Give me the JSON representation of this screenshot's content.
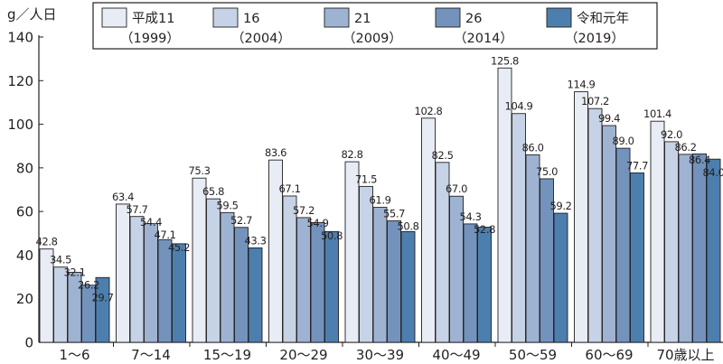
{
  "chart_data": {
    "type": "bar",
    "unit_label": "g／人日",
    "categories": [
      "1～6",
      "7～14",
      "15～19",
      "20～29",
      "30～39",
      "40～49",
      "50～59",
      "60～69",
      "70歳以上"
    ],
    "series": [
      {
        "name": "平成11",
        "year": "（1999）",
        "color": "#e8edf5",
        "values": [
          42.8,
          63.4,
          75.3,
          83.6,
          82.8,
          102.8,
          125.8,
          114.9,
          101.4
        ]
      },
      {
        "name": "16",
        "year": "（2004）",
        "color": "#c6d3e6",
        "values": [
          34.5,
          57.7,
          65.8,
          67.1,
          71.5,
          82.5,
          104.9,
          107.2,
          92.0
        ]
      },
      {
        "name": "21",
        "year": "（2009）",
        "color": "#9eb3d2",
        "values": [
          32.1,
          54.4,
          59.5,
          57.2,
          61.9,
          67.0,
          86.0,
          99.4,
          86.2
        ]
      },
      {
        "name": "26",
        "year": "（2014）",
        "color": "#7393bd",
        "values": [
          26.2,
          47.1,
          52.7,
          54.9,
          55.7,
          54.3,
          75.0,
          89.0,
          86.4
        ]
      },
      {
        "name": "令和元年",
        "year": "（2019）",
        "color": "#4c7fae",
        "values": [
          29.7,
          45.2,
          43.3,
          50.8,
          50.8,
          52.8,
          59.2,
          77.7,
          84.0
        ]
      }
    ],
    "data_labels": [
      [
        "42.8",
        "63.4",
        "75.3",
        "83.6",
        "82.8",
        "102.8",
        "125.8",
        "114.9",
        "101.4"
      ],
      [
        "34.5",
        "57.7",
        "65.8",
        "67.1",
        "71.5",
        "82.5",
        "104.9",
        "107.2",
        "92.0"
      ],
      [
        "32.1",
        "54.4",
        "59.5",
        "57.2",
        "61.9",
        "67.0",
        "86.0",
        "99.4",
        "86.2"
      ],
      [
        "26.2",
        "47.1",
        "52.7",
        "54.9",
        "55.7",
        "54.3",
        "75.0",
        "89.0",
        "86.4"
      ],
      [
        "29.7",
        "45.2",
        "43.3",
        "50.8",
        "50.8",
        "52.8",
        "59.2",
        "77.7",
        "84.0"
      ]
    ],
    "y_ticks": [
      "0",
      "20",
      "40",
      "60",
      "80",
      "100",
      "120",
      "140"
    ],
    "ylim": [
      0,
      140
    ],
    "grid": false,
    "legend_position": "top-right"
  }
}
